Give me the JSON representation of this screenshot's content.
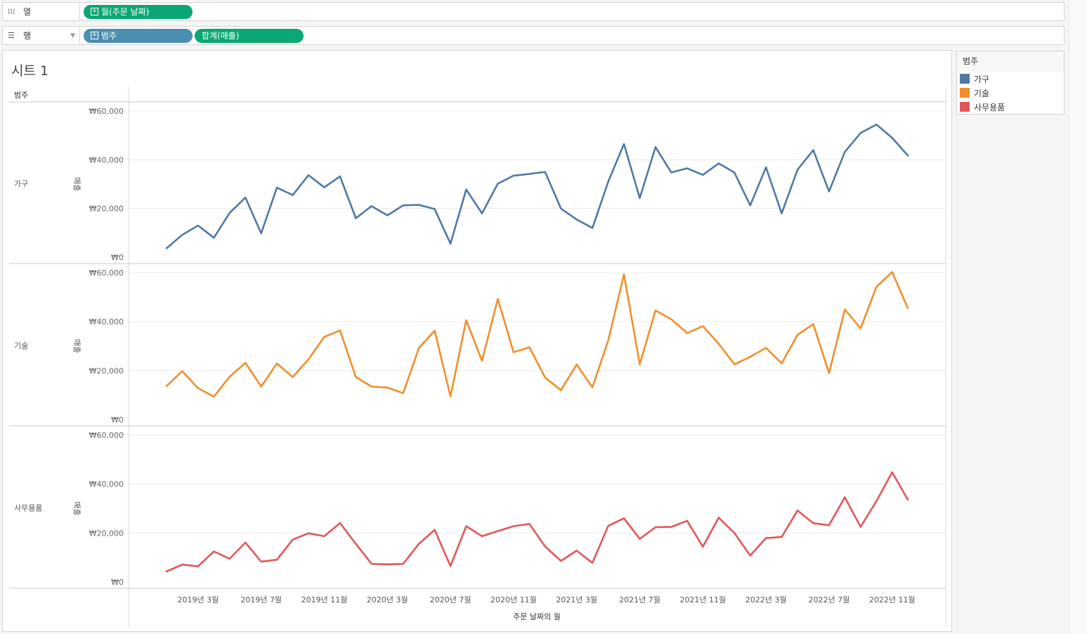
{
  "shelves": {
    "columns": {
      "label": "열",
      "icon": "columns-icon",
      "pills": [
        "월(주문 날짜)"
      ]
    },
    "rows": {
      "label": "행",
      "icon": "rows-icon",
      "pills": [
        "범주",
        "합계(매출)"
      ]
    }
  },
  "sheet": {
    "title": "시트 1",
    "row_header": "범주"
  },
  "legend": {
    "title": "범주",
    "items": [
      {
        "label": "가구",
        "color": "#4e79a7"
      },
      {
        "label": "기술",
        "color": "#f28e2b"
      },
      {
        "label": "사무용품",
        "color": "#e15759"
      }
    ]
  },
  "chart_data": {
    "type": "line",
    "xlabel": "주문 날짜의 월",
    "ylabel": "매출",
    "ylim": [
      0,
      60000
    ],
    "yticks": [
      "₩0",
      "₩20,000",
      "₩40,000",
      "₩60,000"
    ],
    "x": [
      "2019-01",
      "2019-02",
      "2019-03",
      "2019-04",
      "2019-05",
      "2019-06",
      "2019-07",
      "2019-08",
      "2019-09",
      "2019-10",
      "2019-11",
      "2019-12",
      "2020-01",
      "2020-02",
      "2020-03",
      "2020-04",
      "2020-05",
      "2020-06",
      "2020-07",
      "2020-08",
      "2020-09",
      "2020-10",
      "2020-11",
      "2020-12",
      "2021-01",
      "2021-02",
      "2021-03",
      "2021-04",
      "2021-05",
      "2021-06",
      "2021-07",
      "2021-08",
      "2021-09",
      "2021-10",
      "2021-11",
      "2021-12",
      "2022-01",
      "2022-02",
      "2022-03",
      "2022-04",
      "2022-05",
      "2022-06",
      "2022-07",
      "2022-08",
      "2022-09",
      "2022-10",
      "2022-11",
      "2022-12"
    ],
    "xtick_labels": [
      "2019년 3월",
      "2019년 7월",
      "2019년 11월",
      "2020년 3월",
      "2020년 7월",
      "2020년 11월",
      "2021년 3월",
      "2021년 7월",
      "2021년 11월",
      "2022년 3월",
      "2022년 7월",
      "2022년 11월"
    ],
    "xtick_index": [
      2,
      6,
      10,
      14,
      18,
      22,
      26,
      30,
      34,
      38,
      42,
      46
    ],
    "series": [
      {
        "name": "가구",
        "color": "#4e79a7",
        "values": [
          3700,
          9200,
          13000,
          8000,
          18200,
          24500,
          9800,
          28600,
          25500,
          33700,
          28700,
          33200,
          16000,
          21000,
          17200,
          21300,
          21500,
          19800,
          5600,
          27800,
          18000,
          30200,
          33500,
          34200,
          35000,
          20000,
          15500,
          12000,
          31000,
          46500,
          24300,
          45200,
          34800,
          36500,
          33800,
          38500,
          34800,
          21300,
          36900,
          18000,
          35900,
          44000,
          27000,
          43200,
          51000,
          54500,
          49000,
          41700
        ]
      },
      {
        "name": "기술",
        "color": "#f28e2b",
        "values": [
          13700,
          19800,
          12800,
          9400,
          17500,
          23200,
          13500,
          22900,
          17400,
          24600,
          33800,
          36400,
          17400,
          13500,
          13100,
          10800,
          29300,
          36300,
          9500,
          40600,
          24000,
          49300,
          27500,
          29600,
          17200,
          12000,
          22500,
          13200,
          32300,
          59300,
          22600,
          44600,
          41000,
          35300,
          38200,
          31000,
          22600,
          25600,
          29300,
          23000,
          34600,
          39000,
          19000,
          45000,
          37300,
          54200,
          60300,
          45500
        ]
      },
      {
        "name": "사무용품",
        "color": "#e15759",
        "values": [
          4300,
          7100,
          6400,
          12500,
          9500,
          16100,
          8300,
          9100,
          17300,
          19900,
          18700,
          24100,
          15600,
          7400,
          7200,
          7400,
          15600,
          21300,
          6500,
          22800,
          18700,
          20800,
          22800,
          23700,
          14500,
          8600,
          12800,
          7800,
          22900,
          26000,
          17600,
          22400,
          22500,
          25000,
          14400,
          26300,
          20000,
          10800,
          17900,
          18400,
          29200,
          24000,
          23200,
          34600,
          22500,
          33000,
          44800,
          33600
        ]
      }
    ]
  }
}
